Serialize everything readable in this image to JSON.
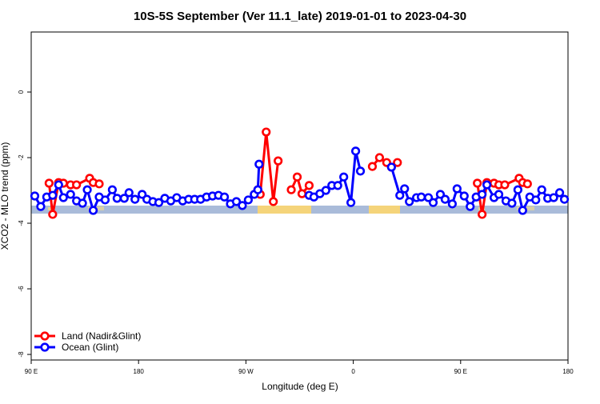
{
  "chart_data": {
    "type": "line",
    "title": "10S-5S September (Ver 11.1_late)   2019-01-01 to 2023-04-30",
    "x_label": "Longitude (deg E)",
    "y_label": "XCO2 - MLO trend (ppm)",
    "xlim": [
      90,
      540
    ],
    "ylim": [
      -8.17,
      1.83
    ],
    "xticks": [
      {
        "value": 90,
        "label": "90 E"
      },
      {
        "value": 180,
        "label": "180"
      },
      {
        "value": 270,
        "label": "90 W"
      },
      {
        "value": 360,
        "label": "0"
      },
      {
        "value": 450,
        "label": "90 E"
      },
      {
        "value": 540,
        "label": "180"
      }
    ],
    "yticks": [
      0,
      -2,
      -4,
      -6,
      -8
    ],
    "legend": "bottom-left",
    "series": [
      {
        "name": "Land (Nadir&Glint)",
        "color": "#ff0000",
        "x": [
          105,
          108,
          113,
          117,
          123,
          128,
          139,
          142,
          147,
          null,
          280,
          282,
          287,
          293,
          297,
          null,
          308,
          313,
          317,
          323,
          null,
          376,
          382,
          388,
          392,
          397,
          null,
          464,
          468,
          472,
          478,
          482,
          487,
          499,
          502,
          506
        ],
        "values": [
          -2.78,
          -3.73,
          -2.76,
          -2.78,
          -2.83,
          -2.83,
          -2.63,
          -2.76,
          -2.8,
          null,
          -2.98,
          -3.12,
          -1.22,
          -3.34,
          -2.1,
          null,
          -2.98,
          -2.59,
          -3.1,
          -2.85,
          null,
          -2.27,
          -2.0,
          -2.15,
          -2.29,
          -2.15,
          null,
          -2.78,
          -3.73,
          -2.76,
          -2.78,
          -2.83,
          -2.83,
          -2.63,
          -2.76,
          -2.8
        ]
      },
      {
        "name": "Ocean (Glint)",
        "color": "#0000ff",
        "x": [
          93,
          98,
          103,
          108,
          113,
          117,
          123,
          128,
          133,
          137,
          142,
          147,
          152,
          158,
          162,
          168,
          172,
          177,
          183,
          187,
          192,
          197,
          202,
          207,
          212,
          217,
          222,
          227,
          232,
          237,
          242,
          247,
          252,
          257,
          262,
          267,
          272,
          277,
          280,
          281,
          null,
          323,
          327,
          332,
          337,
          342,
          347,
          352,
          358,
          362,
          366,
          null,
          392,
          399,
          403,
          407,
          413,
          417,
          423,
          427,
          433,
          437,
          443,
          447,
          453,
          458,
          463,
          468,
          472,
          478,
          482,
          488,
          493,
          498,
          502,
          508,
          513,
          518,
          523,
          528,
          533,
          537
        ],
        "values": [
          -3.17,
          -3.49,
          -3.2,
          -3.15,
          -2.83,
          -3.22,
          -3.12,
          -3.32,
          -3.39,
          -2.98,
          -3.61,
          -3.2,
          -3.29,
          -2.98,
          -3.24,
          -3.24,
          -3.07,
          -3.27,
          -3.12,
          -3.27,
          -3.34,
          -3.37,
          -3.24,
          -3.32,
          -3.22,
          -3.32,
          -3.27,
          -3.27,
          -3.27,
          -3.2,
          -3.17,
          -3.15,
          -3.2,
          -3.41,
          -3.34,
          -3.46,
          -3.29,
          -3.12,
          -2.98,
          -2.2,
          null,
          -3.15,
          -3.2,
          -3.1,
          -3.0,
          -2.85,
          -2.85,
          -2.59,
          -3.37,
          -1.8,
          -2.41,
          null,
          -2.29,
          -3.15,
          -2.95,
          -3.34,
          -3.22,
          -3.2,
          -3.22,
          -3.37,
          -3.12,
          -3.27,
          -3.41,
          -2.95,
          -3.17,
          -3.49,
          -3.2,
          -3.12,
          -2.83,
          -3.22,
          -3.12,
          -3.32,
          -3.39,
          -2.98,
          -3.61,
          -3.2,
          -3.29,
          -2.98,
          -3.24,
          -3.22,
          -3.07,
          -3.27
        ]
      }
    ]
  }
}
